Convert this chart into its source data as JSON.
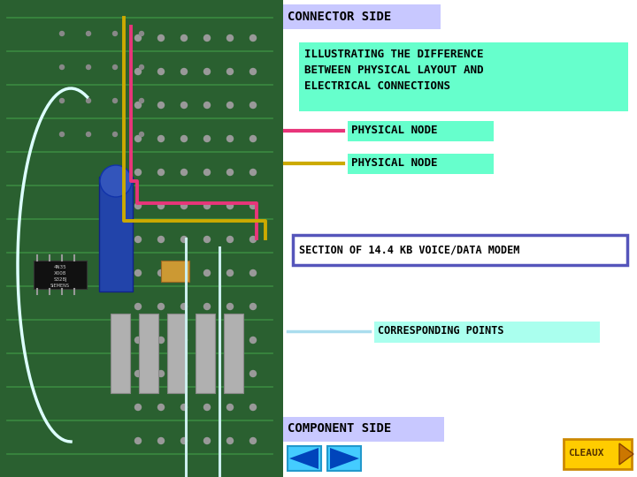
{
  "bg_color": "#ffffff",
  "connector_side_text": "CONNECTOR SIDE",
  "connector_side_bg": "#c8c8ff",
  "illustrating_bg": "#66ffcc",
  "physical_node_1_text": "PHYSICAL NODE",
  "physical_node_1_color": "#66ffcc",
  "physical_node_1_line": "#e8357a",
  "physical_node_2_text": "PHYSICAL NODE",
  "physical_node_2_color": "#66ffcc",
  "physical_node_2_line": "#ccaa00",
  "section_text": "SECTION OF 14.4 KB VOICE/DATA MODEM",
  "section_border": "#5555bb",
  "section_bg": "#ffffff",
  "corresponding_text": "CORRESPONDING POINTS",
  "corresponding_bg": "#aaffee",
  "corresponding_line": "#aaddee",
  "component_side_text": "COMPONENT SIDE",
  "component_side_bg": "#c8c8ff",
  "cleaux_bg": "#ffcc00",
  "cleaux_border": "#cc8800",
  "cleaux_text": "CLEAUX",
  "nav_bg": "#44ccff",
  "nav_border": "#2299cc",
  "nav_tri": "#0044bb",
  "pcb_bg": "#2a6030",
  "pcb_trace": "#3a8a40"
}
